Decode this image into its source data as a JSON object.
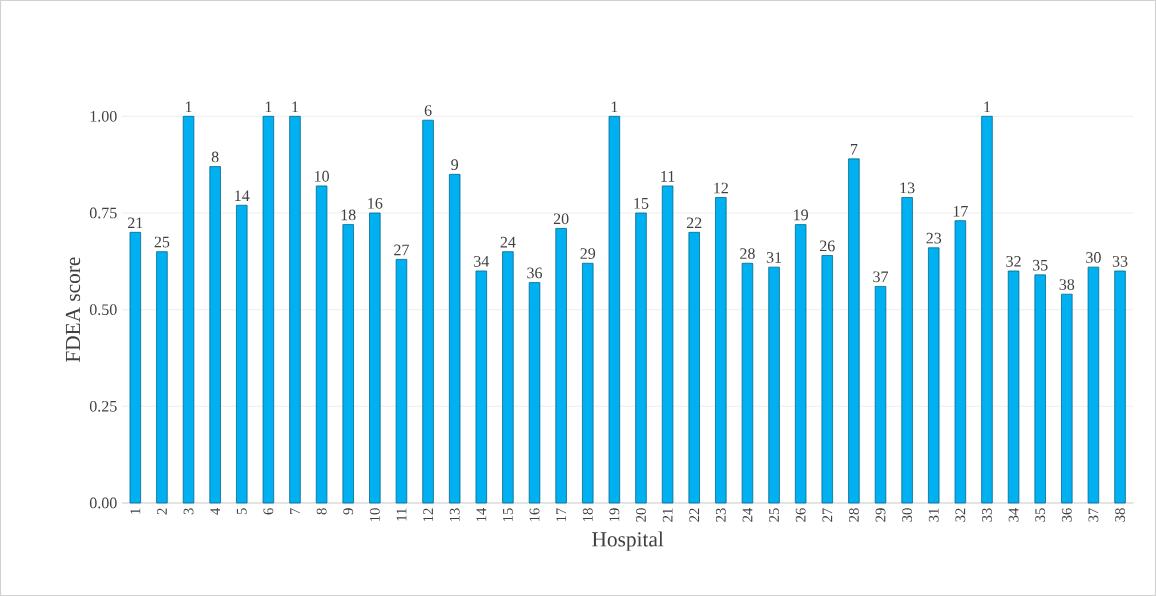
{
  "chart_data": {
    "type": "bar",
    "xlabel": "Hospital",
    "ylabel": "FDEA score",
    "categories": [
      "1",
      "2",
      "3",
      "4",
      "5",
      "6",
      "7",
      "8",
      "9",
      "10",
      "11",
      "12",
      "13",
      "14",
      "15",
      "16",
      "17",
      "18",
      "19",
      "20",
      "21",
      "22",
      "23",
      "24",
      "25",
      "26",
      "27",
      "28",
      "29",
      "30",
      "31",
      "32",
      "33",
      "34",
      "35",
      "36",
      "37",
      "38"
    ],
    "values": [
      0.7,
      0.65,
      1.0,
      0.87,
      0.77,
      1.0,
      1.0,
      0.82,
      0.72,
      0.75,
      0.63,
      0.99,
      0.85,
      0.6,
      0.65,
      0.57,
      0.71,
      0.62,
      1.0,
      0.75,
      0.82,
      0.7,
      0.79,
      0.62,
      0.61,
      0.72,
      0.64,
      0.89,
      0.56,
      0.79,
      0.66,
      0.73,
      1.0,
      0.6,
      0.59,
      0.54,
      0.61,
      0.6
    ],
    "annotations": [
      {
        "text": "21",
        "x": "1",
        "y": 0.7
      },
      {
        "text": "25",
        "x": "2",
        "y": 0.65
      },
      {
        "text": "1",
        "x": "3",
        "y": 1.0
      },
      {
        "text": "8",
        "x": "4",
        "y": 0.87
      },
      {
        "text": "14",
        "x": "5",
        "y": 0.77
      },
      {
        "text": "1",
        "x": "6",
        "y": 1.0
      },
      {
        "text": "1",
        "x": "7",
        "y": 1.0
      },
      {
        "text": "10",
        "x": "8",
        "y": 0.82
      },
      {
        "text": "18",
        "x": "9",
        "y": 0.72
      },
      {
        "text": "16",
        "x": "10",
        "y": 0.75
      },
      {
        "text": "27",
        "x": "11",
        "y": 0.63
      },
      {
        "text": "6",
        "x": "12",
        "y": 0.99
      },
      {
        "text": "9",
        "x": "13",
        "y": 0.85
      },
      {
        "text": "34",
        "x": "14",
        "y": 0.6
      },
      {
        "text": "24",
        "x": "15",
        "y": 0.65
      },
      {
        "text": "36",
        "x": "16",
        "y": 0.57
      },
      {
        "text": "20",
        "x": "17",
        "y": 0.71
      },
      {
        "text": "29",
        "x": "18",
        "y": 0.62
      },
      {
        "text": "1",
        "x": "19",
        "y": 1.0
      },
      {
        "text": "15",
        "x": "20",
        "y": 0.75
      },
      {
        "text": "11",
        "x": "21",
        "y": 0.82
      },
      {
        "text": "22",
        "x": "22",
        "y": 0.7
      },
      {
        "text": "12",
        "x": "23",
        "y": 0.79
      },
      {
        "text": "28",
        "x": "24",
        "y": 0.62
      },
      {
        "text": "31",
        "x": "25",
        "y": 0.61
      },
      {
        "text": "19",
        "x": "26",
        "y": 0.72
      },
      {
        "text": "26",
        "x": "27",
        "y": 0.64
      },
      {
        "text": "7",
        "x": "28",
        "y": 0.89
      },
      {
        "text": "37",
        "x": "29",
        "y": 0.56
      },
      {
        "text": "13",
        "x": "30",
        "y": 0.79
      },
      {
        "text": "23",
        "x": "31",
        "y": 0.66
      },
      {
        "text": "17",
        "x": "32",
        "y": 0.73
      },
      {
        "text": "1",
        "x": "33",
        "y": 1.0
      },
      {
        "text": "32",
        "x": "34",
        "y": 0.6
      },
      {
        "text": "35",
        "x": "35",
        "y": 0.59
      },
      {
        "text": "38",
        "x": "36",
        "y": 0.54
      },
      {
        "text": "30",
        "x": "37",
        "y": 0.61
      },
      {
        "text": "33",
        "x": "38",
        "y": 0.6
      }
    ],
    "color": "#00b0f0",
    "ylim": [
      0,
      1
    ],
    "yticks": [
      {
        "value": 0,
        "label": "0.00"
      },
      {
        "value": 0.25,
        "label": "0.25"
      },
      {
        "value": 0.5,
        "label": "0.50"
      },
      {
        "value": 0.75,
        "label": "0.75"
      },
      {
        "value": 1,
        "label": "1.00"
      }
    ],
    "grid": "y"
  }
}
